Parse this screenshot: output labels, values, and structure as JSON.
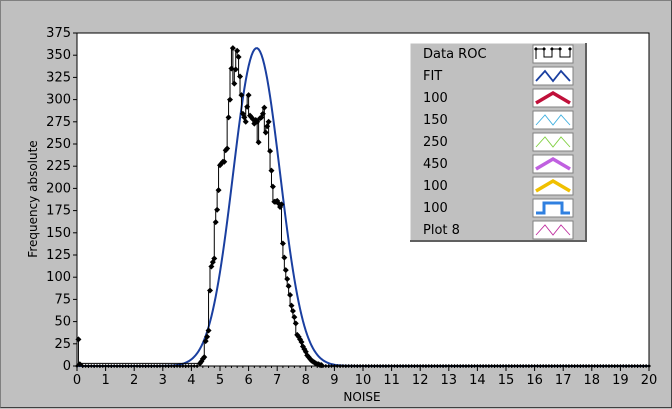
{
  "chart_data": {
    "type": "line",
    "title": "",
    "xlabel": "NOISE",
    "ylabel": "Frequency absolute",
    "xlim": [
      0,
      20
    ],
    "ylim": [
      0,
      375
    ],
    "x_ticks": [
      0,
      1,
      2,
      3,
      4,
      5,
      6,
      7,
      8,
      9,
      10,
      11,
      12,
      13,
      14,
      15,
      16,
      17,
      18,
      19,
      20
    ],
    "y_ticks": [
      0,
      25,
      50,
      75,
      100,
      125,
      150,
      175,
      200,
      225,
      250,
      275,
      300,
      325,
      350,
      375
    ],
    "grid": false,
    "legend_position": "top-right",
    "legend": [
      {
        "label": "Data ROC",
        "color": "#000000",
        "style": "step-points"
      },
      {
        "label": "FIT",
        "color": "#1a3fa0",
        "style": "line"
      },
      {
        "label": "100",
        "color": "#c0103a",
        "style": "thick-line"
      },
      {
        "label": "150",
        "color": "#40b0e0",
        "style": "thin-line"
      },
      {
        "label": "250",
        "color": "#80d040",
        "style": "thin-line"
      },
      {
        "label": "450",
        "color": "#c060e0",
        "style": "thick-line"
      },
      {
        "label": "100",
        "color": "#f0c000",
        "style": "thick-line"
      },
      {
        "label": "100",
        "color": "#3080e0",
        "style": "square-wave"
      },
      {
        "label": "Plot 8",
        "color": "#c030a0",
        "style": "thin-line"
      }
    ],
    "series": [
      {
        "name": "Data ROC",
        "color": "#000000",
        "points": [
          [
            0.05,
            30
          ],
          [
            0.1,
            2
          ],
          [
            4.3,
            3
          ],
          [
            4.35,
            5
          ],
          [
            4.4,
            8
          ],
          [
            4.45,
            10
          ],
          [
            4.5,
            28
          ],
          [
            4.55,
            33
          ],
          [
            4.6,
            40
          ],
          [
            4.65,
            85
          ],
          [
            4.7,
            112
          ],
          [
            4.75,
            117
          ],
          [
            4.8,
            121
          ],
          [
            4.85,
            162
          ],
          [
            4.9,
            176
          ],
          [
            4.95,
            198
          ],
          [
            5.0,
            226
          ],
          [
            5.05,
            228
          ],
          [
            5.1,
            230
          ],
          [
            5.15,
            230
          ],
          [
            5.2,
            243
          ],
          [
            5.25,
            245
          ],
          [
            5.3,
            280
          ],
          [
            5.35,
            300
          ],
          [
            5.4,
            335
          ],
          [
            5.45,
            358
          ],
          [
            5.5,
            318
          ],
          [
            5.55,
            334
          ],
          [
            5.6,
            355
          ],
          [
            5.65,
            348
          ],
          [
            5.7,
            326
          ],
          [
            5.75,
            305
          ],
          [
            5.8,
            284
          ],
          [
            5.85,
            280
          ],
          [
            5.9,
            275
          ],
          [
            5.95,
            292
          ],
          [
            6.0,
            305
          ],
          [
            6.05,
            282
          ],
          [
            6.1,
            280
          ],
          [
            6.15,
            278
          ],
          [
            6.2,
            273
          ],
          [
            6.25,
            277
          ],
          [
            6.3,
            275
          ],
          [
            6.35,
            252
          ],
          [
            6.4,
            279
          ],
          [
            6.45,
            280
          ],
          [
            6.5,
            284
          ],
          [
            6.55,
            291
          ],
          [
            6.6,
            263
          ],
          [
            6.65,
            270
          ],
          [
            6.7,
            275
          ],
          [
            6.75,
            242
          ],
          [
            6.8,
            220
          ],
          [
            6.85,
            202
          ],
          [
            6.9,
            185
          ],
          [
            6.95,
            185
          ],
          [
            7.0,
            186
          ],
          [
            7.05,
            183
          ],
          [
            7.1,
            179
          ],
          [
            7.15,
            182
          ],
          [
            7.2,
            138
          ],
          [
            7.25,
            122
          ],
          [
            7.3,
            108
          ],
          [
            7.35,
            98
          ],
          [
            7.4,
            90
          ],
          [
            7.45,
            80
          ],
          [
            7.5,
            68
          ],
          [
            7.55,
            62
          ],
          [
            7.6,
            55
          ],
          [
            7.65,
            48
          ],
          [
            7.7,
            35
          ],
          [
            7.75,
            33
          ],
          [
            7.8,
            30
          ],
          [
            7.85,
            27
          ],
          [
            7.9,
            22
          ],
          [
            7.95,
            19
          ],
          [
            8.0,
            16
          ],
          [
            8.05,
            12
          ],
          [
            8.1,
            10
          ],
          [
            8.15,
            8
          ],
          [
            8.2,
            6
          ],
          [
            8.25,
            5
          ],
          [
            8.3,
            4
          ],
          [
            8.35,
            3
          ],
          [
            8.4,
            2
          ],
          [
            8.45,
            2
          ],
          [
            8.5,
            1
          ],
          [
            8.55,
            1
          ],
          [
            8.6,
            0
          ],
          [
            20,
            0
          ]
        ]
      },
      {
        "name": "FIT",
        "color": "#1a3fa0",
        "gaussian": {
          "amplitude": 358,
          "mean": 6.28,
          "sigma": 0.82
        }
      }
    ]
  }
}
